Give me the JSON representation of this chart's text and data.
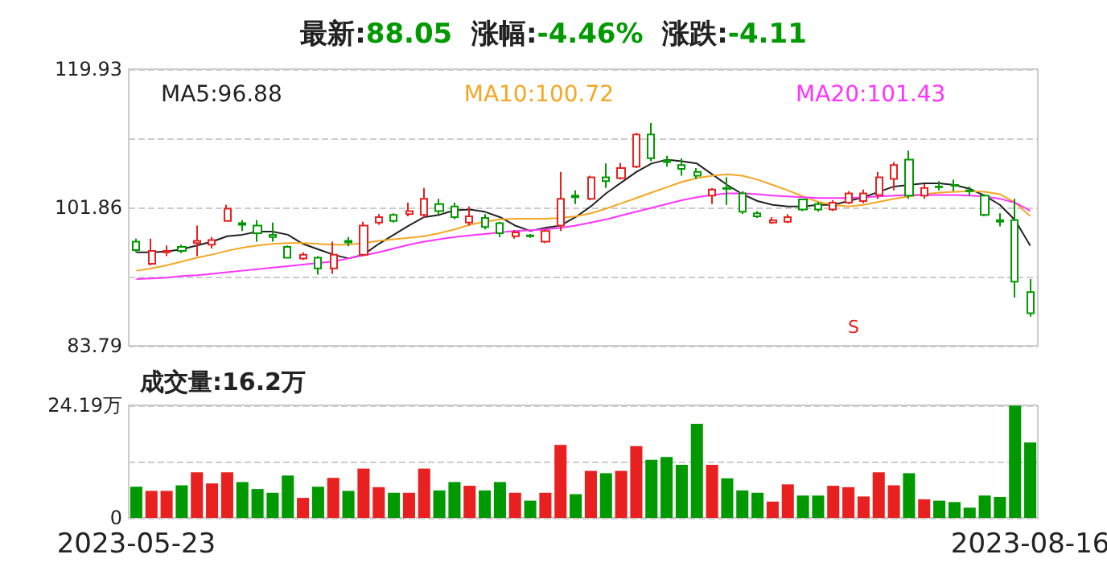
{
  "chart_data": [
    {
      "type": "candlestick",
      "title": "最新:88.05  涨幅:-4.46%  涨跌:-4.11",
      "categories": [
        "2023-05-23",
        null,
        null,
        null,
        null,
        null,
        null,
        null,
        null,
        null,
        null,
        null,
        null,
        null,
        null,
        null,
        null,
        null,
        null,
        null,
        null,
        null,
        null,
        null,
        null,
        null,
        null,
        null,
        null,
        null,
        null,
        null,
        null,
        null,
        null,
        null,
        null,
        null,
        null,
        null,
        null,
        null,
        null,
        null,
        null,
        null,
        null,
        null,
        null,
        null,
        null,
        null,
        null,
        null,
        null,
        null,
        null,
        null,
        null,
        "2023-08-16"
      ],
      "ohlc": [
        [
          97.4,
          97.8,
          96.0,
          96.3
        ],
        [
          94.5,
          97.8,
          94.3,
          96.2
        ],
        [
          96.0,
          96.9,
          95.5,
          96.2
        ],
        [
          96.7,
          97.0,
          95.9,
          96.2
        ],
        [
          97.2,
          99.5,
          95.5,
          97.5
        ],
        [
          97.0,
          98.0,
          96.5,
          97.6
        ],
        [
          100.1,
          102.2,
          100.0,
          101.7
        ],
        [
          99.8,
          100.2,
          98.8,
          99.6
        ],
        [
          99.5,
          100.2,
          97.4,
          98.5
        ],
        [
          98.3,
          99.9,
          97.4,
          98.0
        ],
        [
          96.7,
          96.9,
          95.2,
          95.3
        ],
        [
          95.2,
          96.0,
          95.0,
          95.7
        ],
        [
          95.3,
          95.5,
          93.1,
          93.9
        ],
        [
          93.9,
          97.4,
          93.2,
          95.7
        ],
        [
          97.5,
          98.0,
          96.8,
          97.3
        ],
        [
          95.7,
          100.0,
          95.5,
          99.5
        ],
        [
          99.9,
          101.0,
          99.6,
          100.6
        ],
        [
          100.9,
          101.1,
          99.9,
          100.1
        ],
        [
          101.0,
          102.5,
          100.7,
          101.4
        ],
        [
          100.9,
          104.4,
          100.5,
          103.0
        ],
        [
          102.3,
          103.0,
          100.9,
          101.4
        ],
        [
          102.0,
          102.5,
          100.3,
          100.6
        ],
        [
          99.9,
          102.0,
          99.5,
          100.7
        ],
        [
          100.5,
          101.0,
          99.0,
          99.3
        ],
        [
          99.8,
          100.0,
          98.0,
          98.5
        ],
        [
          98.1,
          98.9,
          97.8,
          98.6
        ],
        [
          98.2,
          98.4,
          97.9,
          98.1
        ],
        [
          97.4,
          99.0,
          97.2,
          98.8
        ],
        [
          99.5,
          106.5,
          98.8,
          103.0
        ],
        [
          103.4,
          104.1,
          102.3,
          103.2
        ],
        [
          103.0,
          106.0,
          102.8,
          105.8
        ],
        [
          105.8,
          107.6,
          104.4,
          105.3
        ],
        [
          105.7,
          107.7,
          105.5,
          107.0
        ],
        [
          107.2,
          111.6,
          107.0,
          111.4
        ],
        [
          111.4,
          112.9,
          107.9,
          108.3
        ],
        [
          108.0,
          108.6,
          107.2,
          107.8
        ],
        [
          107.4,
          108.3,
          106.0,
          106.9
        ],
        [
          106.5,
          107.0,
          105.6,
          106.0
        ],
        [
          103.4,
          104.4,
          102.3,
          104.2
        ],
        [
          104.4,
          105.8,
          102.2,
          104.3
        ],
        [
          103.7,
          104.0,
          101.0,
          101.3
        ],
        [
          101.1,
          101.4,
          100.5,
          100.7
        ],
        [
          99.9,
          100.6,
          99.7,
          100.2
        ],
        [
          100.0,
          101.0,
          99.8,
          100.6
        ],
        [
          102.9,
          103.0,
          101.4,
          101.6
        ],
        [
          102.3,
          102.6,
          101.3,
          101.6
        ],
        [
          101.6,
          102.8,
          101.4,
          102.5
        ],
        [
          102.5,
          104.0,
          102.3,
          103.7
        ],
        [
          102.7,
          104.2,
          102.4,
          103.7
        ],
        [
          103.5,
          106.5,
          103.0,
          105.8
        ],
        [
          105.6,
          107.8,
          104.1,
          107.4
        ],
        [
          108.1,
          109.3,
          103.0,
          103.4
        ],
        [
          103.4,
          104.9,
          103.0,
          104.4
        ],
        [
          104.6,
          105.3,
          104.1,
          104.5
        ],
        [
          104.8,
          105.5,
          104.0,
          104.7
        ],
        [
          104.1,
          104.6,
          103.4,
          104.0
        ],
        [
          103.4,
          103.6,
          100.7,
          100.9
        ],
        [
          100.2,
          101.1,
          99.4,
          100.0
        ],
        [
          100.2,
          103.0,
          90.1,
          92.16
        ],
        [
          90.8,
          92.5,
          87.6,
          88.05
        ]
      ],
      "colors": [
        "#009900",
        "#e82020",
        "#e82020",
        "#009900",
        "#e82020",
        "#e82020",
        "#e82020",
        "#009900",
        "#009900",
        "#009900",
        "#009900",
        "#e82020",
        "#009900",
        "#e82020",
        "#009900",
        "#e82020",
        "#e82020",
        "#009900",
        "#e82020",
        "#e82020",
        "#009900",
        "#009900",
        "#e82020",
        "#009900",
        "#009900",
        "#e82020",
        "#009900",
        "#e82020",
        "#e82020",
        "#009900",
        "#e82020",
        "#009900",
        "#e82020",
        "#e82020",
        "#009900",
        "#009900",
        "#009900",
        "#009900",
        "#e82020",
        "#009900",
        "#009900",
        "#009900",
        "#e82020",
        "#e82020",
        "#009900",
        "#009900",
        "#e82020",
        "#e82020",
        "#e82020",
        "#e82020",
        "#e82020",
        "#009900",
        "#e82020",
        "#009900",
        "#009900",
        "#009900",
        "#009900",
        "#009900",
        "#009900",
        "#009900"
      ],
      "series": [
        {
          "type": "line",
          "name": "MA5:96.88",
          "color": "#222222",
          "values": [
            96.0,
            96.0,
            96.1,
            96.4,
            96.9,
            97.4,
            98.1,
            98.3,
            98.7,
            98.7,
            98.3,
            97.1,
            96.4,
            95.7,
            95.2,
            95.7,
            97.1,
            98.3,
            99.5,
            100.6,
            100.9,
            101.5,
            101.6,
            101.3,
            100.6,
            99.5,
            98.8,
            99.2,
            99.5,
            100.6,
            102.0,
            103.7,
            105.1,
            106.5,
            107.6,
            108.1,
            107.9,
            107.6,
            106.2,
            104.8,
            103.6,
            102.7,
            102.2,
            102.0,
            102.0,
            102.2,
            102.2,
            102.7,
            103.2,
            103.9,
            104.6,
            104.8,
            105.0,
            105.0,
            104.8,
            104.3,
            103.4,
            102.2,
            100.2,
            96.88
          ]
        },
        {
          "type": "line",
          "name": "MA10:100.72",
          "color": "#f5a623",
          "values": [
            93.6,
            93.9,
            94.3,
            94.8,
            95.3,
            95.7,
            96.2,
            96.6,
            96.9,
            97.1,
            97.2,
            97.2,
            97.1,
            97.0,
            97.0,
            97.2,
            97.5,
            97.7,
            97.9,
            98.1,
            98.5,
            99.0,
            99.6,
            100.0,
            100.3,
            100.4,
            100.4,
            100.4,
            100.5,
            100.7,
            101.1,
            101.7,
            102.4,
            103.1,
            103.8,
            104.5,
            105.2,
            105.7,
            106.0,
            106.2,
            106.0,
            105.5,
            104.8,
            104.1,
            103.3,
            102.6,
            102.2,
            102.0,
            102.2,
            102.6,
            103.0,
            103.3,
            103.6,
            103.8,
            103.9,
            104.0,
            103.9,
            103.6,
            102.5,
            100.72
          ]
        },
        {
          "type": "line",
          "name": "MA20:101.43",
          "color": "#ff33ff",
          "values": [
            92.5,
            92.6,
            92.7,
            92.9,
            93.0,
            93.2,
            93.4,
            93.6,
            93.8,
            94.0,
            94.2,
            94.4,
            94.6,
            94.8,
            95.2,
            95.6,
            96.0,
            96.5,
            97.0,
            97.4,
            97.7,
            98.0,
            98.2,
            98.4,
            98.6,
            98.8,
            98.9,
            99.0,
            99.2,
            99.5,
            99.9,
            100.3,
            100.8,
            101.3,
            101.8,
            102.3,
            102.8,
            103.2,
            103.5,
            103.7,
            103.7,
            103.6,
            103.4,
            103.3,
            103.2,
            103.1,
            103.1,
            103.1,
            103.2,
            103.3,
            103.4,
            103.5,
            103.5,
            103.5,
            103.5,
            103.4,
            103.3,
            103.0,
            102.5,
            101.43
          ]
        }
      ],
      "ylim": [
        83.79,
        119.93
      ],
      "yticks": [
        83.79,
        {
          "value": 92.825,
          "label": null
        },
        101.86,
        {
          "value": 110.895,
          "label": null
        },
        119.93
      ],
      "grid": "y",
      "legend": "top left",
      "tick_labels": "y",
      "marker": "none",
      "line_style": "solid",
      "annotations": [
        "S"
      ]
    },
    {
      "type": "bar",
      "title": "成交量:16.2万",
      "categories": [
        "2023-05-23",
        null,
        null,
        null,
        null,
        null,
        null,
        null,
        null,
        null,
        null,
        null,
        null,
        null,
        null,
        null,
        null,
        null,
        null,
        null,
        null,
        null,
        null,
        null,
        null,
        null,
        null,
        null,
        null,
        null,
        null,
        null,
        null,
        null,
        null,
        null,
        null,
        null,
        null,
        null,
        null,
        null,
        null,
        null,
        null,
        null,
        null,
        null,
        null,
        null,
        null,
        null,
        null,
        null,
        null,
        null,
        null,
        null,
        null,
        "2023-08-16"
      ],
      "values": [
        6.7,
        5.8,
        5.8,
        7.0,
        9.8,
        7.4,
        9.8,
        7.7,
        6.2,
        5.4,
        9.1,
        4.3,
        6.7,
        8.6,
        5.8,
        10.6,
        6.6,
        5.4,
        5.4,
        10.6,
        5.9,
        7.7,
        6.9,
        5.9,
        7.7,
        5.4,
        3.7,
        5.4,
        15.7,
        5.1,
        10.1,
        9.6,
        10.1,
        15.4,
        12.5,
        13.1,
        11.4,
        20.2,
        11.4,
        8.5,
        5.9,
        5.4,
        3.5,
        7.2,
        4.8,
        4.8,
        6.9,
        6.6,
        4.6,
        9.8,
        7.0,
        9.6,
        4.0,
        3.7,
        3.4,
        2.2,
        4.8,
        4.5,
        24.1,
        16.2
      ],
      "colors": [
        "#009900",
        "#e82020",
        "#e82020",
        "#009900",
        "#e82020",
        "#e82020",
        "#e82020",
        "#009900",
        "#009900",
        "#009900",
        "#009900",
        "#e82020",
        "#009900",
        "#e82020",
        "#009900",
        "#e82020",
        "#e82020",
        "#009900",
        "#e82020",
        "#e82020",
        "#009900",
        "#009900",
        "#e82020",
        "#009900",
        "#009900",
        "#e82020",
        "#009900",
        "#e82020",
        "#e82020",
        "#009900",
        "#e82020",
        "#009900",
        "#e82020",
        "#e82020",
        "#009900",
        "#009900",
        "#009900",
        "#009900",
        "#e82020",
        "#009900",
        "#009900",
        "#009900",
        "#e82020",
        "#e82020",
        "#009900",
        "#009900",
        "#e82020",
        "#e82020",
        "#e82020",
        "#e82020",
        "#e82020",
        "#009900",
        "#e82020",
        "#009900",
        "#009900",
        "#009900",
        "#009900",
        "#009900",
        "#009900",
        "#009900"
      ],
      "ylim": [
        0,
        24.19
      ],
      "yticks": [
        0,
        {
          "value": 12.095,
          "label": null
        },
        {
          "value": 24.19,
          "label": "24.19万"
        }
      ],
      "grid": "y"
    }
  ]
}
